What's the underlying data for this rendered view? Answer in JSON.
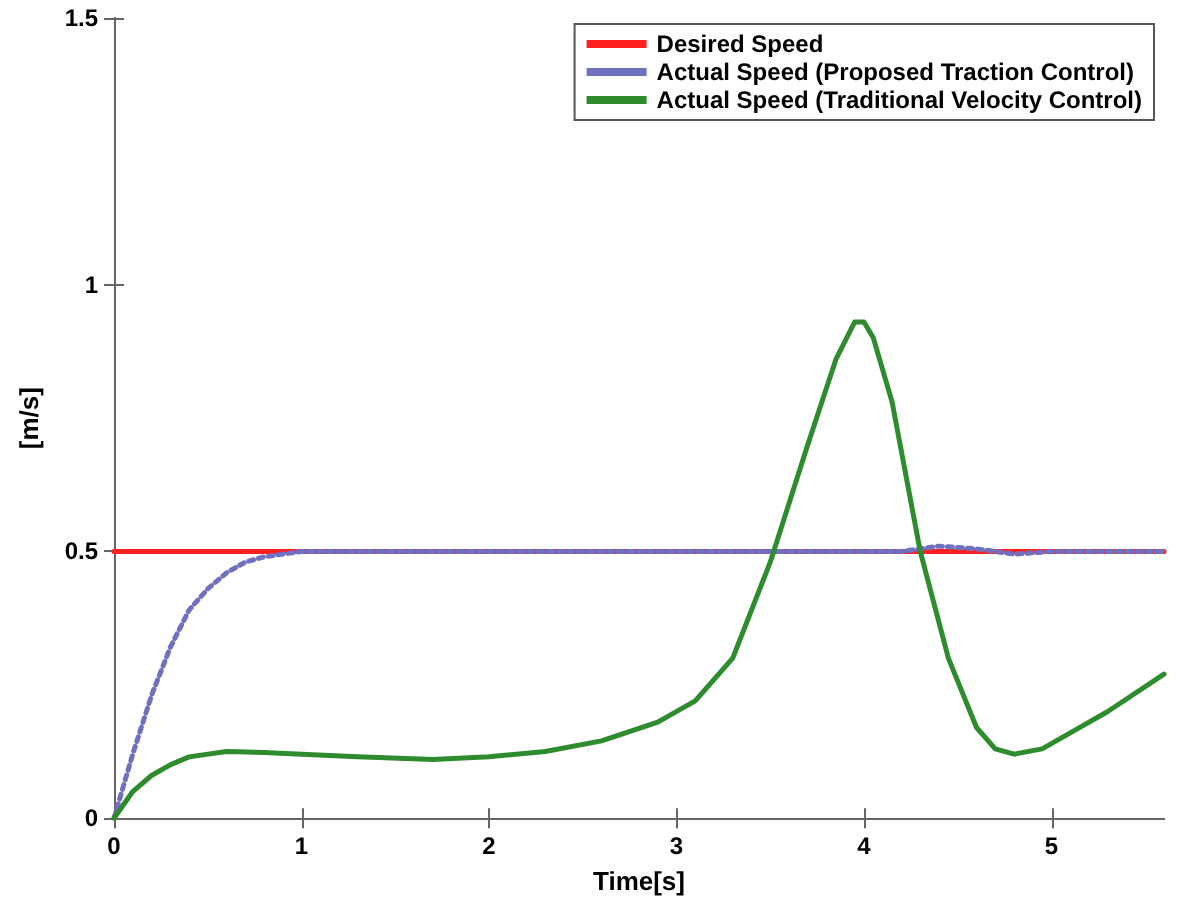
{
  "chart_data": {
    "type": "line",
    "xlabel": "Time[s]",
    "ylabel": "[m/s]",
    "xlim": [
      0,
      5.6
    ],
    "xticks": [
      0,
      1,
      2,
      3,
      4,
      5
    ],
    "ylim": [
      0,
      1.5
    ],
    "yticks": [
      0,
      0.5,
      1,
      1.5
    ],
    "grid": false,
    "legend": "top right",
    "marker": "none",
    "series": [
      {
        "name": "Desired Speed",
        "color": "#ff2020",
        "line_style": "solid",
        "x": [
          0,
          5.6
        ],
        "values": [
          0.5,
          0.5
        ]
      },
      {
        "name": "Actual Speed (Proposed Traction Control)",
        "color": "#7070c0",
        "line_style": "dotted",
        "x": [
          0,
          0.1,
          0.2,
          0.3,
          0.4,
          0.5,
          0.6,
          0.7,
          0.8,
          0.9,
          1,
          1.2,
          1.5,
          2,
          2.5,
          3,
          3.5,
          4,
          4.2,
          4.4,
          4.6,
          4.8,
          5,
          5.6
        ],
        "values": [
          0,
          0.12,
          0.23,
          0.32,
          0.39,
          0.43,
          0.46,
          0.48,
          0.49,
          0.495,
          0.5,
          0.5,
          0.5,
          0.5,
          0.5,
          0.5,
          0.5,
          0.5,
          0.5,
          0.51,
          0.505,
          0.495,
          0.5,
          0.5
        ]
      },
      {
        "name": "Actual Speed (Traditional Velocity Control)",
        "color": "#2e8b2e",
        "line_style": "solid",
        "x": [
          0,
          0.1,
          0.2,
          0.3,
          0.4,
          0.6,
          0.8,
          1,
          1.3,
          1.7,
          2,
          2.3,
          2.6,
          2.9,
          3.1,
          3.3,
          3.5,
          3.7,
          3.85,
          3.95,
          4,
          4.05,
          4.15,
          4.3,
          4.45,
          4.6,
          4.7,
          4.8,
          4.95,
          5.1,
          5.3,
          5.6
        ],
        "values": [
          0,
          0.05,
          0.08,
          0.1,
          0.115,
          0.125,
          0.123,
          0.12,
          0.115,
          0.11,
          0.115,
          0.125,
          0.145,
          0.18,
          0.22,
          0.3,
          0.48,
          0.7,
          0.86,
          0.93,
          0.93,
          0.9,
          0.78,
          0.5,
          0.3,
          0.17,
          0.13,
          0.12,
          0.13,
          0.16,
          0.2,
          0.27
        ]
      }
    ]
  }
}
